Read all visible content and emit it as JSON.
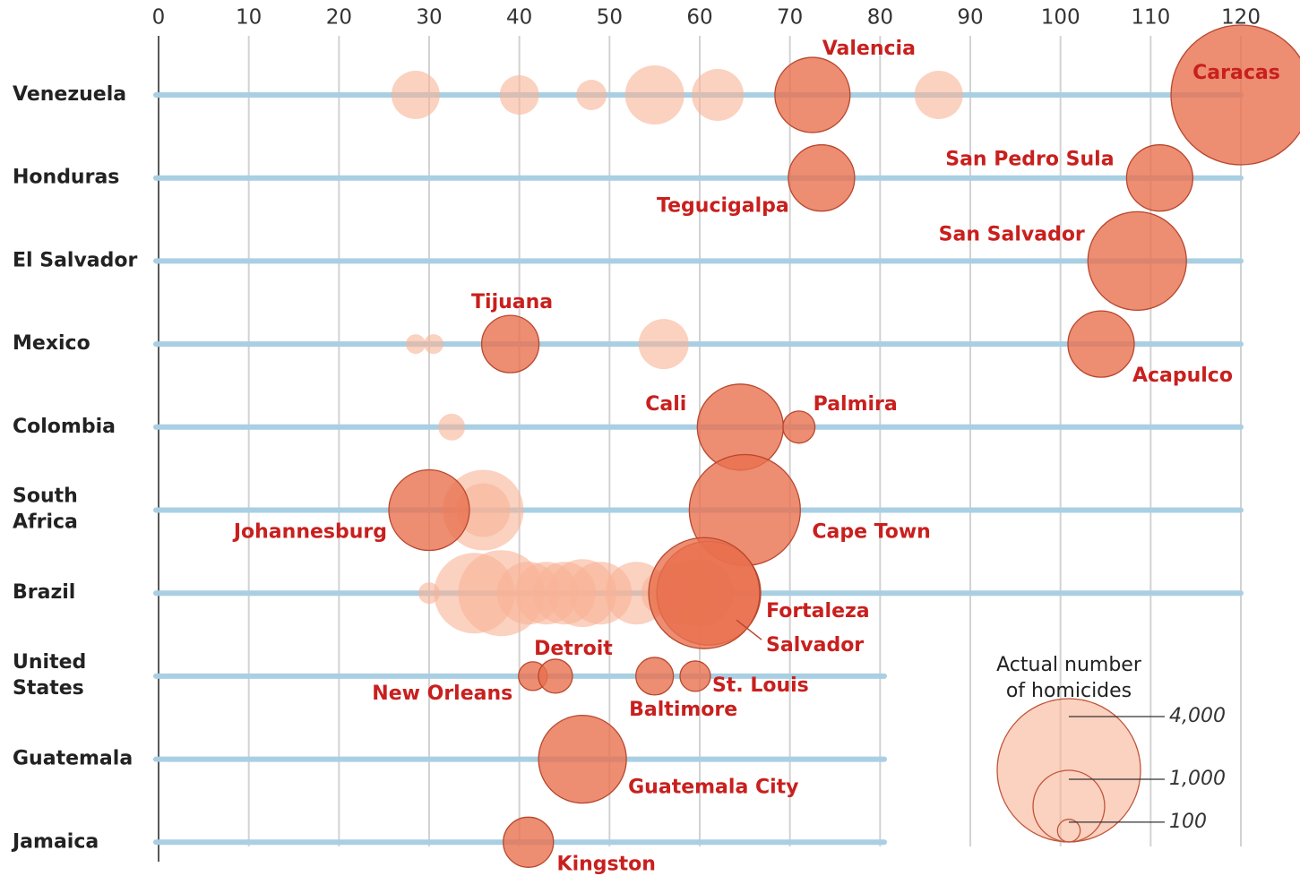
{
  "chart_data": {
    "type": "bubble",
    "xlim": [
      0,
      120
    ],
    "xticks": [
      0,
      10,
      20,
      30,
      40,
      50,
      60,
      70,
      80,
      90,
      100,
      110,
      120
    ],
    "grid": true,
    "color": "#f9b396",
    "highlight_color": "#e9704f",
    "label_color": "#c8201e",
    "rows": [
      {
        "name": "Venezuela",
        "points": [
          {
            "x": 28.5,
            "size": 455
          },
          {
            "x": 40,
            "size": 302
          },
          {
            "x": 48,
            "size": 180
          },
          {
            "x": 55,
            "size": 680
          },
          {
            "x": 62,
            "size": 525
          },
          {
            "x": 72.5,
            "size": 1100,
            "label": "Valencia"
          },
          {
            "x": 86.5,
            "size": 455
          },
          {
            "x": 120,
            "size": 3800,
            "label": "Caracas"
          }
        ]
      },
      {
        "name": "Honduras",
        "points": [
          {
            "x": 73.5,
            "size": 855,
            "label": "Tegucigalpa"
          },
          {
            "x": 111,
            "size": 855,
            "label": "San Pedro Sula"
          }
        ]
      },
      {
        "name": "El Salvador",
        "points": [
          {
            "x": 108.5,
            "size": 1890,
            "label": "San Salvador"
          }
        ]
      },
      {
        "name": "Mexico",
        "points": [
          {
            "x": 28.5,
            "size": 75
          },
          {
            "x": 30.5,
            "size": 75
          },
          {
            "x": 39,
            "size": 640,
            "label": "Tijuana"
          },
          {
            "x": 56,
            "size": 490
          },
          {
            "x": 104.5,
            "size": 855,
            "label": "Acapulco"
          }
        ]
      },
      {
        "name": "Colombia",
        "points": [
          {
            "x": 32.5,
            "size": 140
          },
          {
            "x": 64.5,
            "size": 1440,
            "label": "Cali"
          },
          {
            "x": 71,
            "size": 200,
            "label": "Palmira"
          }
        ]
      },
      {
        "name": "South Africa",
        "points": [
          {
            "x": 36,
            "size": 1265
          },
          {
            "x": 36,
            "size": 560
          },
          {
            "x": 30,
            "size": 1265,
            "label": "Johannesburg"
          },
          {
            "x": 65,
            "size": 2400,
            "label": "Cape Town"
          }
        ]
      },
      {
        "name": "Brazil",
        "points": [
          {
            "x": 30,
            "size": 90
          },
          {
            "x": 35,
            "size": 1265
          },
          {
            "x": 38,
            "size": 1440
          },
          {
            "x": 41,
            "size": 765
          },
          {
            "x": 43,
            "size": 765
          },
          {
            "x": 45,
            "size": 765
          },
          {
            "x": 47,
            "size": 900
          },
          {
            "x": 49,
            "size": 765
          },
          {
            "x": 53,
            "size": 765
          },
          {
            "x": 56,
            "size": 390
          },
          {
            "x": 58,
            "size": 765
          },
          {
            "x": 60,
            "size": 900
          },
          {
            "x": 61,
            "size": 2100,
            "label": "Fortaleza"
          },
          {
            "x": 60.5,
            "size": 2400,
            "label": "Salvador"
          }
        ]
      },
      {
        "name": "United States",
        "points": [
          {
            "x": 41.5,
            "size": 160,
            "label": "New Orleans"
          },
          {
            "x": 44,
            "size": 225,
            "label": "Detroit"
          },
          {
            "x": 55,
            "size": 275,
            "label": "Baltimore"
          },
          {
            "x": 59.5,
            "size": 180,
            "label": "St. Louis"
          }
        ]
      },
      {
        "name": "Guatemala",
        "points": [
          {
            "x": 47,
            "size": 1500,
            "label": "Guatemala City"
          }
        ]
      },
      {
        "name": "Jamaica",
        "points": [
          {
            "x": 41,
            "size": 490,
            "label": "Kingston"
          }
        ]
      }
    ],
    "size_legend": {
      "title": "Actual number of homicides",
      "values": [
        4000,
        1000,
        100
      ],
      "value_labels": [
        "4,000",
        "1,000",
        "100"
      ]
    }
  }
}
